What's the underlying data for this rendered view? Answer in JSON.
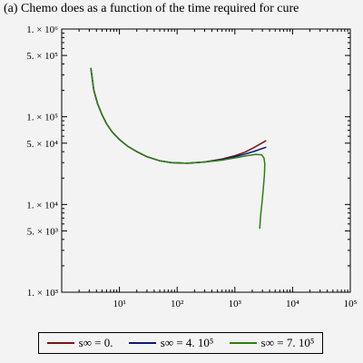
{
  "chart_data": {
    "type": "line",
    "title": "(a) Chemo does as a function of the time required for cure",
    "xlabel": "",
    "ylabel": "",
    "xscale": "log",
    "yscale": "log",
    "xlim": [
      1,
      100000
    ],
    "ylim": [
      1000,
      1000000
    ],
    "x_ticks": [
      {
        "value": 10,
        "label": "10¹"
      },
      {
        "value": 100,
        "label": "10²"
      },
      {
        "value": 1000,
        "label": "10³"
      },
      {
        "value": 10000,
        "label": "10⁴"
      },
      {
        "value": 100000,
        "label": "10⁵"
      }
    ],
    "y_ticks": [
      {
        "value": 1000,
        "label": "1. × 10³"
      },
      {
        "value": 5000,
        "label": "5. × 10³"
      },
      {
        "value": 10000,
        "label": "1. × 10⁴"
      },
      {
        "value": 50000,
        "label": "5. × 10⁴"
      },
      {
        "value": 100000,
        "label": "1. × 10⁵"
      },
      {
        "value": 500000,
        "label": "5. × 10⁵"
      },
      {
        "value": 1000000,
        "label": "1. × 10⁶"
      }
    ],
    "grid": false,
    "legend_position": "bottom",
    "series": [
      {
        "name": "s∞ = 0.",
        "color": "#7b1414",
        "points": [
          [
            3.2,
            360000
          ],
          [
            3.6,
            200000
          ],
          [
            4.2,
            140000
          ],
          [
            5,
            105000
          ],
          [
            6,
            83000
          ],
          [
            7.5,
            67000
          ],
          [
            10,
            55000
          ],
          [
            14,
            46000
          ],
          [
            20,
            40000
          ],
          [
            30,
            35000
          ],
          [
            50,
            31500
          ],
          [
            80,
            30000
          ],
          [
            150,
            29500
          ],
          [
            300,
            30500
          ],
          [
            600,
            33000
          ],
          [
            1000,
            36000
          ],
          [
            1500,
            39500
          ],
          [
            2200,
            45000
          ],
          [
            3000,
            50500
          ],
          [
            3500,
            53500
          ]
        ]
      },
      {
        "name": "s∞ = 4. 10⁵",
        "color": "#0a1a78",
        "points": [
          [
            3.2,
            360000
          ],
          [
            3.6,
            200000
          ],
          [
            4.2,
            140000
          ],
          [
            5,
            105000
          ],
          [
            6,
            83000
          ],
          [
            7.5,
            67000
          ],
          [
            10,
            55000
          ],
          [
            14,
            46000
          ],
          [
            20,
            40000
          ],
          [
            30,
            35000
          ],
          [
            50,
            31500
          ],
          [
            80,
            30000
          ],
          [
            150,
            29500
          ],
          [
            300,
            30500
          ],
          [
            600,
            32500
          ],
          [
            1000,
            35000
          ],
          [
            1500,
            37500
          ],
          [
            2200,
            40500
          ],
          [
            3000,
            43500
          ],
          [
            3500,
            45000
          ]
        ]
      },
      {
        "name": "s∞ = 7. 10⁵",
        "color": "#2e7d16",
        "points": [
          [
            3.2,
            360000
          ],
          [
            3.6,
            200000
          ],
          [
            4.2,
            140000
          ],
          [
            5,
            105000
          ],
          [
            6,
            83000
          ],
          [
            7.5,
            67000
          ],
          [
            10,
            55000
          ],
          [
            14,
            46000
          ],
          [
            20,
            40000
          ],
          [
            30,
            35000
          ],
          [
            50,
            31500
          ],
          [
            80,
            30000
          ],
          [
            150,
            29500
          ],
          [
            300,
            30500
          ],
          [
            600,
            32000
          ],
          [
            1000,
            34000
          ],
          [
            1600,
            36000
          ],
          [
            2300,
            37300
          ],
          [
            2900,
            36800
          ],
          [
            3200,
            34000
          ],
          [
            3300,
            29000
          ],
          [
            3250,
            22000
          ],
          [
            3100,
            15000
          ],
          [
            2950,
            10500
          ],
          [
            2800,
            7500
          ],
          [
            2700,
            5300
          ]
        ]
      }
    ]
  }
}
